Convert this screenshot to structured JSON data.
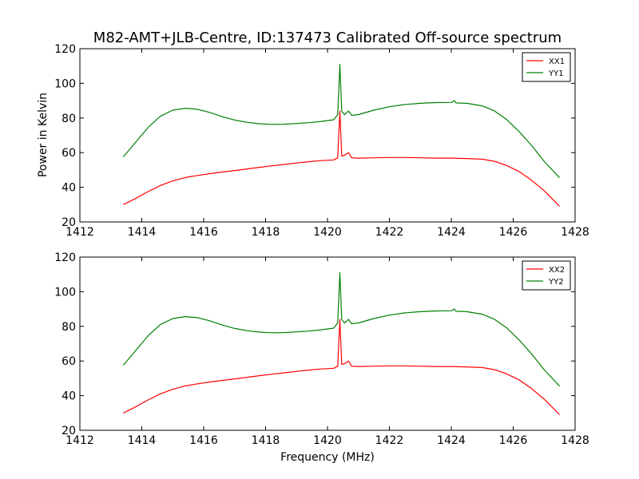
{
  "title": "M82-AMT+JLB-Centre, ID:137473 Calibrated Off-source spectrum",
  "xlabel": "Frequency (MHz)",
  "ylabel": "Power in Kelvin",
  "chart_data": [
    {
      "type": "line",
      "xlim": [
        1412,
        1428
      ],
      "ylim": [
        20,
        120
      ],
      "xticks": [
        "1412",
        "1414",
        "1416",
        "1418",
        "1420",
        "1422",
        "1424",
        "1426",
        "1428"
      ],
      "yticks": [
        "20",
        "40",
        "60",
        "80",
        "100",
        "120"
      ],
      "legend_position": "top-right",
      "series": [
        {
          "name": "XX1",
          "color": "#ff0000",
          "points": [
            [
              1413.4,
              30
            ],
            [
              1413.8,
              33.5
            ],
            [
              1414.2,
              37.5
            ],
            [
              1414.6,
              41
            ],
            [
              1415.0,
              43.7
            ],
            [
              1415.4,
              45.6
            ],
            [
              1415.8,
              46.8
            ],
            [
              1416.2,
              47.9
            ],
            [
              1416.6,
              48.8
            ],
            [
              1417.0,
              49.7
            ],
            [
              1417.4,
              50.6
            ],
            [
              1417.8,
              51.5
            ],
            [
              1418.2,
              52.4
            ],
            [
              1418.6,
              53.2
            ],
            [
              1419.0,
              54.0
            ],
            [
              1419.4,
              54.8
            ],
            [
              1419.8,
              55.4
            ],
            [
              1420.2,
              55.8
            ],
            [
              1420.33,
              57
            ],
            [
              1420.4,
              84
            ],
            [
              1420.46,
              58
            ],
            [
              1420.55,
              58.5
            ],
            [
              1420.68,
              60
            ],
            [
              1420.78,
              57
            ],
            [
              1421.0,
              56.8
            ],
            [
              1421.5,
              57.0
            ],
            [
              1422.0,
              57.2
            ],
            [
              1422.5,
              57.2
            ],
            [
              1423.0,
              57.0
            ],
            [
              1423.5,
              56.8
            ],
            [
              1424.0,
              56.8
            ],
            [
              1424.5,
              56.6
            ],
            [
              1425.0,
              56.2
            ],
            [
              1425.4,
              55.0
            ],
            [
              1425.8,
              52.5
            ],
            [
              1426.2,
              49.0
            ],
            [
              1426.6,
              44.0
            ],
            [
              1427.0,
              38.0
            ],
            [
              1427.5,
              29.0
            ]
          ]
        },
        {
          "name": "YY1",
          "color": "#008000",
          "points": [
            [
              1413.4,
              57.5
            ],
            [
              1413.8,
              66
            ],
            [
              1414.2,
              74.5
            ],
            [
              1414.6,
              81
            ],
            [
              1415.0,
              84.5
            ],
            [
              1415.4,
              85.6
            ],
            [
              1415.8,
              85.0
            ],
            [
              1416.2,
              83.2
            ],
            [
              1416.6,
              80.8
            ],
            [
              1417.0,
              78.8
            ],
            [
              1417.4,
              77.5
            ],
            [
              1417.8,
              76.7
            ],
            [
              1418.2,
              76.3
            ],
            [
              1418.6,
              76.4
            ],
            [
              1419.0,
              76.8
            ],
            [
              1419.4,
              77.3
            ],
            [
              1419.8,
              78.0
            ],
            [
              1420.2,
              79.0
            ],
            [
              1420.33,
              82
            ],
            [
              1420.4,
              111
            ],
            [
              1420.46,
              84
            ],
            [
              1420.55,
              82
            ],
            [
              1420.68,
              84
            ],
            [
              1420.78,
              81.5
            ],
            [
              1421.0,
              82
            ],
            [
              1421.5,
              84.5
            ],
            [
              1422.0,
              86.5
            ],
            [
              1422.5,
              87.8
            ],
            [
              1423.0,
              88.5
            ],
            [
              1423.5,
              88.9
            ],
            [
              1424.0,
              89.0
            ],
            [
              1424.1,
              90
            ],
            [
              1424.15,
              88.7
            ],
            [
              1424.5,
              88.5
            ],
            [
              1425.0,
              87.0
            ],
            [
              1425.4,
              84.0
            ],
            [
              1425.8,
              79.0
            ],
            [
              1426.2,
              72.0
            ],
            [
              1426.6,
              64.0
            ],
            [
              1427.0,
              55.0
            ],
            [
              1427.5,
              45.5
            ]
          ]
        }
      ]
    },
    {
      "type": "line",
      "xlim": [
        1412,
        1428
      ],
      "ylim": [
        20,
        120
      ],
      "xticks": [
        "1412",
        "1414",
        "1416",
        "1418",
        "1420",
        "1422",
        "1424",
        "1426",
        "1428"
      ],
      "yticks": [
        "20",
        "40",
        "60",
        "80",
        "100",
        "120"
      ],
      "legend_position": "top-right",
      "series": [
        {
          "name": "XX2",
          "color": "#ff0000",
          "points": [
            [
              1413.4,
              30
            ],
            [
              1413.8,
              33.5
            ],
            [
              1414.2,
              37.5
            ],
            [
              1414.6,
              41
            ],
            [
              1415.0,
              43.7
            ],
            [
              1415.4,
              45.6
            ],
            [
              1415.8,
              46.8
            ],
            [
              1416.2,
              47.9
            ],
            [
              1416.6,
              48.8
            ],
            [
              1417.0,
              49.7
            ],
            [
              1417.4,
              50.6
            ],
            [
              1417.8,
              51.5
            ],
            [
              1418.2,
              52.4
            ],
            [
              1418.6,
              53.2
            ],
            [
              1419.0,
              54.0
            ],
            [
              1419.4,
              54.8
            ],
            [
              1419.8,
              55.4
            ],
            [
              1420.2,
              55.8
            ],
            [
              1420.33,
              57
            ],
            [
              1420.4,
              84
            ],
            [
              1420.46,
              58
            ],
            [
              1420.55,
              58.5
            ],
            [
              1420.68,
              60
            ],
            [
              1420.78,
              57
            ],
            [
              1421.0,
              56.8
            ],
            [
              1421.5,
              57.0
            ],
            [
              1422.0,
              57.2
            ],
            [
              1422.5,
              57.2
            ],
            [
              1423.0,
              57.0
            ],
            [
              1423.5,
              56.8
            ],
            [
              1424.0,
              56.8
            ],
            [
              1424.5,
              56.6
            ],
            [
              1425.0,
              56.2
            ],
            [
              1425.4,
              55.0
            ],
            [
              1425.8,
              52.5
            ],
            [
              1426.2,
              49.0
            ],
            [
              1426.6,
              44.0
            ],
            [
              1427.0,
              38.0
            ],
            [
              1427.5,
              29.0
            ]
          ]
        },
        {
          "name": "YY2",
          "color": "#008000",
          "points": [
            [
              1413.4,
              57.5
            ],
            [
              1413.8,
              66
            ],
            [
              1414.2,
              74.5
            ],
            [
              1414.6,
              81
            ],
            [
              1415.0,
              84.5
            ],
            [
              1415.4,
              85.6
            ],
            [
              1415.8,
              85.0
            ],
            [
              1416.2,
              83.2
            ],
            [
              1416.6,
              80.8
            ],
            [
              1417.0,
              78.8
            ],
            [
              1417.4,
              77.5
            ],
            [
              1417.8,
              76.7
            ],
            [
              1418.2,
              76.3
            ],
            [
              1418.6,
              76.4
            ],
            [
              1419.0,
              76.8
            ],
            [
              1419.4,
              77.3
            ],
            [
              1419.8,
              78.0
            ],
            [
              1420.2,
              79.0
            ],
            [
              1420.33,
              82
            ],
            [
              1420.4,
              111
            ],
            [
              1420.46,
              84
            ],
            [
              1420.55,
              82
            ],
            [
              1420.68,
              84
            ],
            [
              1420.78,
              81.5
            ],
            [
              1421.0,
              82
            ],
            [
              1421.5,
              84.5
            ],
            [
              1422.0,
              86.5
            ],
            [
              1422.5,
              87.8
            ],
            [
              1423.0,
              88.5
            ],
            [
              1423.5,
              88.9
            ],
            [
              1424.0,
              89.0
            ],
            [
              1424.1,
              90
            ],
            [
              1424.15,
              88.7
            ],
            [
              1424.5,
              88.5
            ],
            [
              1425.0,
              87.0
            ],
            [
              1425.4,
              84.0
            ],
            [
              1425.8,
              79.0
            ],
            [
              1426.2,
              72.0
            ],
            [
              1426.6,
              64.0
            ],
            [
              1427.0,
              55.0
            ],
            [
              1427.5,
              45.5
            ]
          ]
        }
      ]
    }
  ]
}
